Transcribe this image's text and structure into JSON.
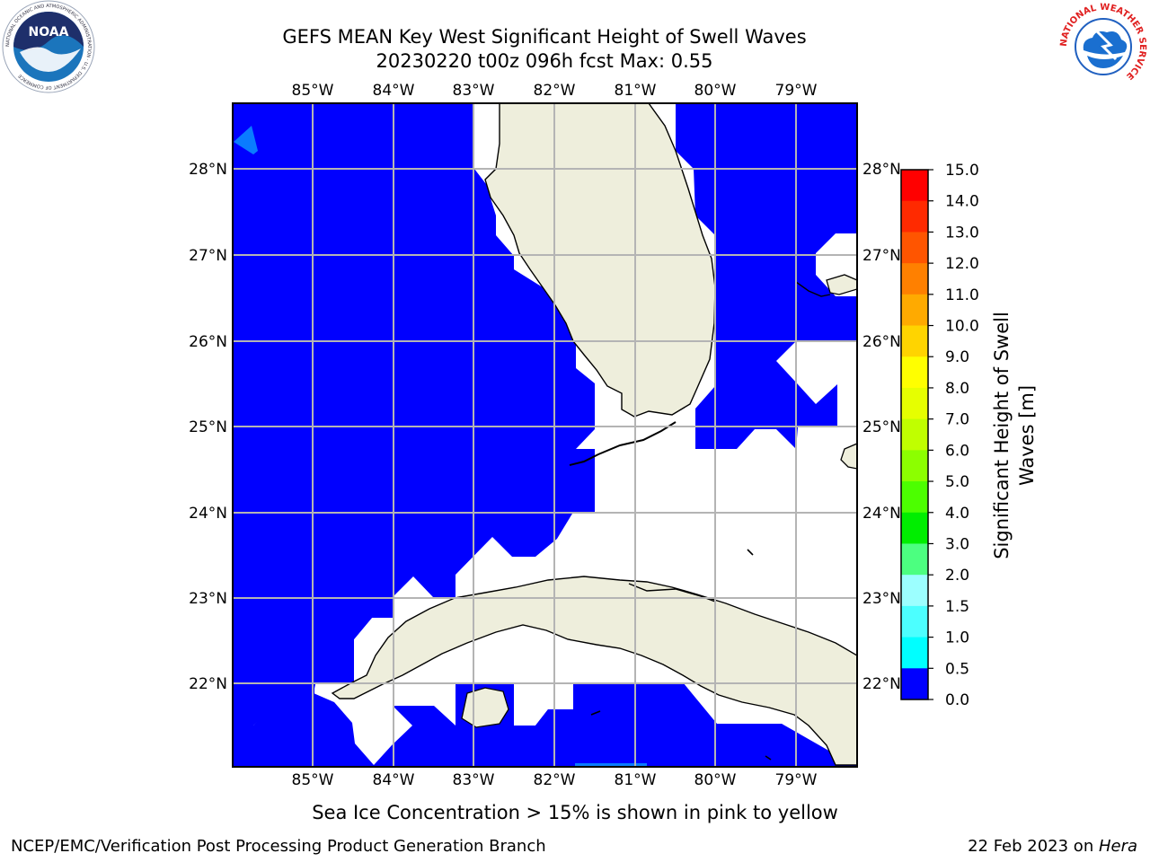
{
  "header": {
    "title_line1": "GEFS MEAN Key West Significant Height of Swell Waves",
    "title_line2": "20230220 t00z 096h fcst   Max: 0.55"
  },
  "logos": {
    "left": {
      "icon": "noaa-logo-icon",
      "text": "NOAA",
      "ring_text": "NATIONAL OCEANIC AND ATMOSPHERIC ADMINISTRATION · U.S. DEPARTMENT OF COMMERCE"
    },
    "right": {
      "icon": "nws-logo-icon",
      "ring_text": "NATIONAL WEATHER SERVICE"
    }
  },
  "map": {
    "longitude_labels": [
      "85°W",
      "84°W",
      "83°W",
      "82°W",
      "81°W",
      "80°W",
      "79°W"
    ],
    "latitude_labels": [
      "28°N",
      "27°N",
      "26°N",
      "25°N",
      "24°N",
      "23°N",
      "22°N"
    ],
    "colors": {
      "ocean_swell_0_0p5": "#0000ff",
      "ocean_swell_0p5_1": "#0a7cff",
      "land": "#eeeedc",
      "grid": "#b4b4b4",
      "no_data": "#ffffff"
    }
  },
  "colorbar": {
    "label_line1": "Significant Height of Swell",
    "label_line2": "Waves [m]",
    "ticks": [
      "15.0",
      "14.0",
      "13.0",
      "12.0",
      "11.0",
      "10.0",
      "9.0",
      "8.0",
      "7.0",
      "6.0",
      "5.0",
      "4.0",
      "3.0",
      "2.0",
      "1.5",
      "1.0",
      "0.5",
      "0.0"
    ],
    "colors_top_to_bottom": [
      "#ff0000",
      "#ff2a00",
      "#ff5500",
      "#ff8000",
      "#ffaa00",
      "#ffd400",
      "#ffff00",
      "#e6ff00",
      "#c0ff00",
      "#8cff00",
      "#4cff00",
      "#00ee00",
      "#4cff80",
      "#9cffff",
      "#4cffff",
      "#00ffff",
      "#0a7cff",
      "#0000ff"
    ]
  },
  "notes": {
    "sea_ice": "Sea Ice Concentration > 15% is shown in pink to yellow"
  },
  "footer": {
    "left": "NCEP/EMC/Verification Post Processing Product Generation Branch",
    "right_date": "22 Feb 2023 on ",
    "right_host": "Hera"
  }
}
